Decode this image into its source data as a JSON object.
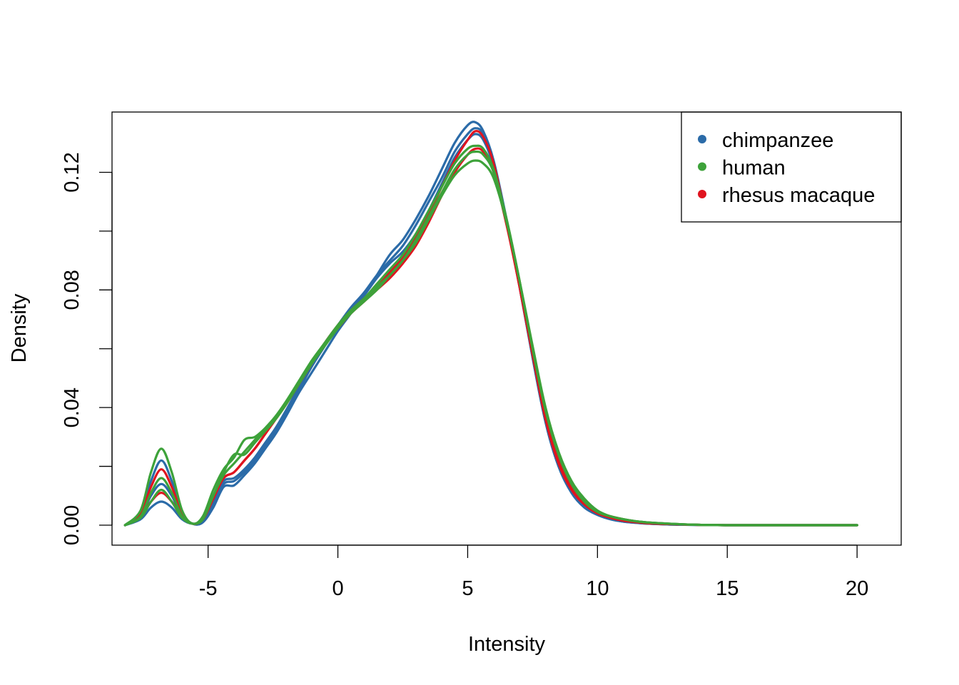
{
  "chart_data": {
    "type": "line",
    "title": "",
    "xlabel": "Intensity",
    "ylabel": "Density",
    "xlim": [
      -8.7,
      21.7
    ],
    "ylim": [
      -0.0068,
      0.1405
    ],
    "x_ticks": [
      -5,
      0,
      5,
      10,
      15,
      20
    ],
    "x_tick_labels": [
      "-5",
      "0",
      "5",
      "10",
      "15",
      "20"
    ],
    "y_ticks": [
      0.0,
      0.02,
      0.04,
      0.06,
      0.08,
      0.1,
      0.12
    ],
    "y_tick_labels": [
      "0.00",
      "",
      "0.04",
      "",
      "0.08",
      "",
      "0.12"
    ],
    "grid": false,
    "legend": {
      "position": "top-right",
      "entries": [
        {
          "label": "chimpanzee",
          "color": "#2b6ba8"
        },
        {
          "label": "human",
          "color": "#3da23a"
        },
        {
          "label": "rhesus macaque",
          "color": "#e0141f"
        }
      ]
    },
    "x": [
      -8.2,
      -7.6,
      -7.2,
      -6.8,
      -6.4,
      -6.0,
      -5.6,
      -5.2,
      -4.8,
      -4.4,
      -4.0,
      -3.6,
      -3.2,
      -2.8,
      -2.4,
      -2.0,
      -1.5,
      -1.0,
      -0.5,
      0.0,
      0.5,
      1.0,
      1.5,
      2.0,
      2.5,
      3.0,
      3.5,
      4.0,
      4.5,
      5.0,
      5.3,
      5.6,
      6.0,
      6.5,
      7.0,
      7.5,
      8.0,
      8.5,
      9.0,
      9.5,
      10.0,
      10.5,
      11.0,
      11.5,
      12.0,
      13.0,
      14.0,
      15.0,
      16.0,
      18.0,
      20.0
    ],
    "series": [
      {
        "group": "chimpanzee",
        "color": "#2b6ba8",
        "values": [
          0.0,
          0.0045,
          0.015,
          0.022,
          0.015,
          0.004,
          0.0005,
          0.001,
          0.006,
          0.013,
          0.0135,
          0.017,
          0.021,
          0.026,
          0.031,
          0.037,
          0.045,
          0.052,
          0.059,
          0.066,
          0.072,
          0.078,
          0.085,
          0.092,
          0.097,
          0.104,
          0.112,
          0.121,
          0.13,
          0.136,
          0.137,
          0.134,
          0.124,
          0.104,
          0.082,
          0.058,
          0.036,
          0.021,
          0.012,
          0.007,
          0.004,
          0.0025,
          0.0015,
          0.001,
          0.0005,
          0.0002,
          0.0001,
          0.0,
          0.0,
          0.0,
          0.0
        ]
      },
      {
        "group": "chimpanzee",
        "color": "#2b6ba8",
        "values": [
          0.0,
          0.003,
          0.01,
          0.014,
          0.01,
          0.003,
          0.0005,
          0.001,
          0.007,
          0.014,
          0.015,
          0.018,
          0.022,
          0.027,
          0.032,
          0.038,
          0.046,
          0.054,
          0.061,
          0.068,
          0.073,
          0.078,
          0.084,
          0.089,
          0.093,
          0.099,
          0.107,
          0.116,
          0.125,
          0.131,
          0.133,
          0.131,
          0.122,
          0.103,
          0.081,
          0.057,
          0.035,
          0.02,
          0.011,
          0.006,
          0.0035,
          0.002,
          0.0012,
          0.0008,
          0.0005,
          0.0002,
          0.0001,
          0.0,
          0.0,
          0.0,
          0.0
        ]
      },
      {
        "group": "chimpanzee",
        "color": "#2b6ba8",
        "values": [
          0.0,
          0.002,
          0.006,
          0.008,
          0.006,
          0.002,
          0.0005,
          0.0015,
          0.008,
          0.015,
          0.016,
          0.019,
          0.023,
          0.028,
          0.033,
          0.039,
          0.047,
          0.055,
          0.062,
          0.068,
          0.074,
          0.079,
          0.085,
          0.09,
          0.095,
          0.102,
          0.11,
          0.118,
          0.127,
          0.133,
          0.135,
          0.133,
          0.123,
          0.103,
          0.081,
          0.057,
          0.035,
          0.02,
          0.011,
          0.006,
          0.0035,
          0.002,
          0.0012,
          0.0008,
          0.0005,
          0.0002,
          0.0001,
          0.0,
          0.0,
          0.0,
          0.0
        ]
      },
      {
        "group": "rhesus macaque",
        "color": "#e0141f",
        "values": [
          0.0,
          0.004,
          0.013,
          0.019,
          0.013,
          0.004,
          0.0005,
          0.002,
          0.009,
          0.016,
          0.018,
          0.022,
          0.026,
          0.031,
          0.036,
          0.041,
          0.048,
          0.055,
          0.062,
          0.067,
          0.072,
          0.076,
          0.08,
          0.084,
          0.089,
          0.095,
          0.103,
          0.112,
          0.12,
          0.126,
          0.128,
          0.127,
          0.12,
          0.102,
          0.081,
          0.058,
          0.037,
          0.022,
          0.013,
          0.007,
          0.0045,
          0.003,
          0.002,
          0.0012,
          0.0008,
          0.0003,
          0.0001,
          0.0,
          0.0,
          0.0,
          0.0
        ]
      },
      {
        "group": "rhesus macaque",
        "color": "#e0141f",
        "values": [
          0.0,
          0.003,
          0.008,
          0.011,
          0.008,
          0.003,
          0.0005,
          0.002,
          0.009,
          0.016,
          0.018,
          0.022,
          0.026,
          0.031,
          0.036,
          0.041,
          0.048,
          0.055,
          0.062,
          0.068,
          0.073,
          0.077,
          0.081,
          0.086,
          0.091,
          0.098,
          0.106,
          0.115,
          0.124,
          0.131,
          0.134,
          0.132,
          0.123,
          0.103,
          0.081,
          0.058,
          0.036,
          0.021,
          0.012,
          0.007,
          0.004,
          0.0025,
          0.0015,
          0.001,
          0.0006,
          0.0003,
          0.0001,
          0.0,
          0.0,
          0.0,
          0.0
        ]
      },
      {
        "group": "human",
        "color": "#3da23a",
        "values": [
          0.0,
          0.005,
          0.018,
          0.026,
          0.018,
          0.005,
          0.0005,
          0.003,
          0.012,
          0.019,
          0.023,
          0.029,
          0.03,
          0.033,
          0.037,
          0.042,
          0.049,
          0.056,
          0.062,
          0.068,
          0.073,
          0.077,
          0.081,
          0.085,
          0.09,
          0.096,
          0.104,
          0.112,
          0.119,
          0.123,
          0.124,
          0.123,
          0.118,
          0.103,
          0.083,
          0.061,
          0.04,
          0.025,
          0.015,
          0.009,
          0.005,
          0.003,
          0.002,
          0.0013,
          0.0009,
          0.0004,
          0.0001,
          0.0,
          0.0,
          0.0,
          0.0
        ]
      },
      {
        "group": "human",
        "color": "#3da23a",
        "values": [
          0.0,
          0.003,
          0.011,
          0.016,
          0.011,
          0.003,
          0.0005,
          0.002,
          0.01,
          0.018,
          0.024,
          0.024,
          0.028,
          0.032,
          0.036,
          0.041,
          0.048,
          0.055,
          0.061,
          0.067,
          0.072,
          0.076,
          0.08,
          0.085,
          0.09,
          0.097,
          0.105,
          0.113,
          0.121,
          0.126,
          0.127,
          0.126,
          0.12,
          0.104,
          0.083,
          0.06,
          0.039,
          0.024,
          0.014,
          0.008,
          0.0045,
          0.003,
          0.002,
          0.0013,
          0.0009,
          0.0004,
          0.0001,
          0.0,
          0.0,
          0.0,
          0.0
        ]
      },
      {
        "group": "human",
        "color": "#3da23a",
        "values": [
          0.0,
          0.0025,
          0.008,
          0.012,
          0.008,
          0.0025,
          0.0005,
          0.002,
          0.01,
          0.017,
          0.021,
          0.025,
          0.029,
          0.033,
          0.037,
          0.042,
          0.049,
          0.056,
          0.062,
          0.068,
          0.073,
          0.077,
          0.082,
          0.087,
          0.092,
          0.099,
          0.107,
          0.115,
          0.123,
          0.128,
          0.129,
          0.128,
          0.121,
          0.104,
          0.083,
          0.06,
          0.039,
          0.024,
          0.014,
          0.008,
          0.0045,
          0.003,
          0.002,
          0.0013,
          0.0009,
          0.0004,
          0.0001,
          0.0,
          0.0,
          0.0,
          0.0
        ]
      }
    ]
  }
}
